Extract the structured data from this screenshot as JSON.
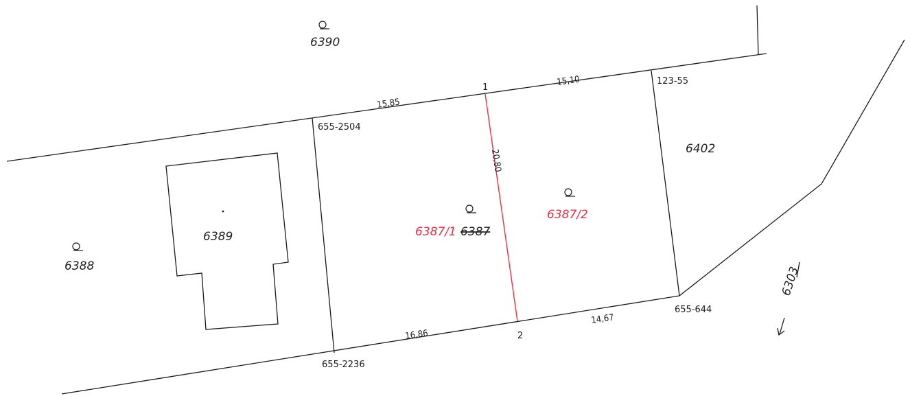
{
  "parcels": {
    "p6390": "6390",
    "p6388": "6388",
    "p6389": "6389",
    "p6387": "6387",
    "p6387_1": "6387/1",
    "p6387_2": "6387/2",
    "p6402": "6402",
    "p6303": "6303"
  },
  "dimensions": {
    "d1585": "15,85",
    "d1510": "15,10",
    "d2080": "20,80",
    "d1686": "16,86",
    "d1467": "14,67"
  },
  "points": {
    "pt1": "1",
    "pt2": "2",
    "pt655_2504": "655-2504",
    "pt123_55": "123-55",
    "pt655_2236": "655-2236",
    "pt655_644": "655-644"
  },
  "colors": {
    "line": "#1a1a1a",
    "new_boundary": "#e8304a"
  }
}
